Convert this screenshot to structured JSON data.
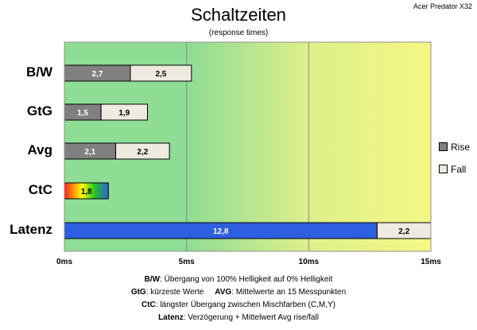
{
  "chart_data": {
    "type": "bar",
    "orientation": "horizontal",
    "stacked": true,
    "title": "Schaltzeiten",
    "subtitle": "(response times)",
    "model": "Acer Predator X32",
    "categories": [
      "B/W",
      "GtG",
      "Avg",
      "CtC",
      "Latenz"
    ],
    "series": [
      {
        "name": "Rise",
        "values": [
          2.7,
          1.5,
          2.1,
          1.8,
          12.8
        ],
        "labels": [
          "2,7",
          "1,5",
          "2,1",
          "1,8",
          "12,8"
        ]
      },
      {
        "name": "Fall",
        "values": [
          2.5,
          1.9,
          2.2,
          null,
          2.2
        ],
        "labels": [
          "2,5",
          "1,9",
          "2,2",
          "",
          "2,2"
        ]
      }
    ],
    "xlim": [
      0,
      15
    ],
    "xticks": [
      0,
      5,
      10,
      15
    ],
    "xtick_labels": [
      "0ms",
      "5ms",
      "10ms",
      "15ms"
    ],
    "grid": true,
    "legend": "right",
    "colors": {
      "rise": "#808080",
      "fall": "#eeeae0",
      "latenz": "#2e5fe0",
      "bg_left": "#8fdc95",
      "bg_right": "#f6f884",
      "ctc_gradient": [
        "#ff2020",
        "#ffff00",
        "#20c020",
        "#3060e0"
      ]
    }
  },
  "notes": {
    "line1": {
      "key": "B/W",
      "text": ":  Übergang von 100% Helligkeit auf 0% Helligkeit"
    },
    "line2a": {
      "key": "GtG",
      "text": ": kürzeste  Werte"
    },
    "line2b": {
      "key": "AVG",
      "text": ": Mittelwerte  an 15 Messpunkten"
    },
    "line3": {
      "key": "CtC",
      "text": ": längster Übergang  zwischen Mischfarben (C,M,Y)"
    },
    "line4": {
      "key": "Latenz",
      "text": ": Verzögerung  + Mittelwert Avg rise/fall"
    }
  }
}
